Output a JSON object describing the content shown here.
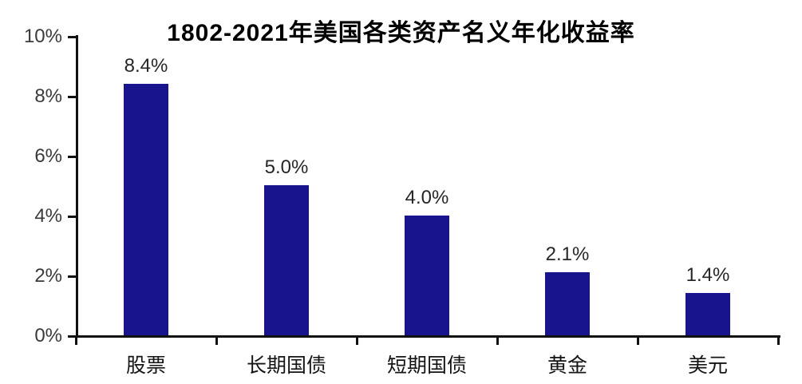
{
  "chart_data": {
    "type": "bar",
    "title": "1802-2021年美国各类资产名义年化收益率",
    "categories": [
      "股票",
      "长期国债",
      "短期国债",
      "黄金",
      "美元"
    ],
    "values": [
      8.4,
      5.0,
      4.0,
      2.1,
      1.4
    ],
    "value_labels": [
      "8.4%",
      "5.0%",
      "4.0%",
      "2.1%",
      "1.4%"
    ],
    "xlabel": "",
    "ylabel": "",
    "ylim": [
      0,
      10
    ],
    "y_tick_values": [
      10,
      8,
      6,
      4,
      2,
      0
    ],
    "y_tick_labels": [
      "10%",
      "8%",
      "6%",
      "4%",
      "2%",
      "0%"
    ],
    "grid": "off",
    "legend": "none",
    "bar_color": "#18148E",
    "axis_color": "#111111",
    "tick_label_color": "#3a3a3a",
    "value_label_color": "#262626",
    "background_color": "#ffffff"
  }
}
